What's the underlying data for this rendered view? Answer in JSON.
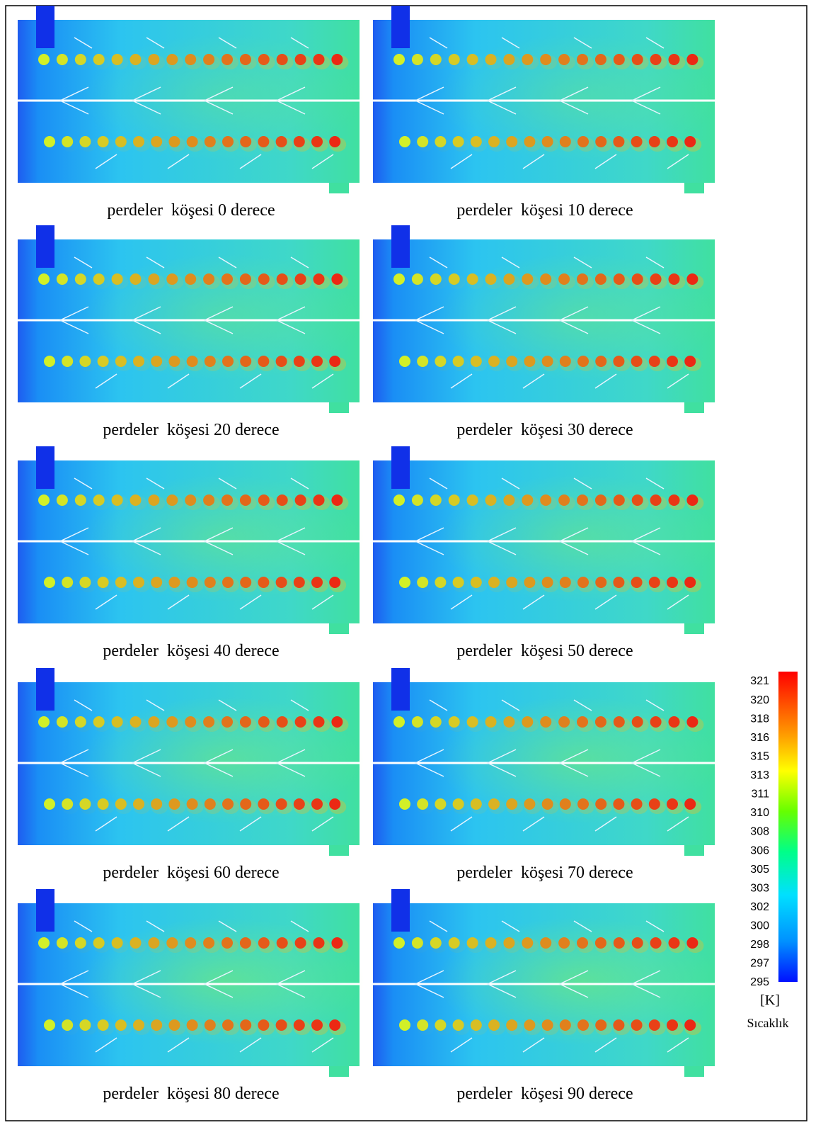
{
  "panels": [
    {
      "caption": "perdeler  köşesi 0 derece"
    },
    {
      "caption": "perdeler  köşesi 10 derece"
    },
    {
      "caption": "perdeler  köşesi 20 derece"
    },
    {
      "caption": "perdeler  köşesi 30 derece"
    },
    {
      "caption": "perdeler  köşesi 40 derece"
    },
    {
      "caption": "perdeler  köşesi 50 derece"
    },
    {
      "caption": "perdeler  köşesi 60 derece"
    },
    {
      "caption": "perdeler  köşesi 70 derece"
    },
    {
      "caption": "perdeler  köşesi 80 derece"
    },
    {
      "caption": "perdeler  köşesi 90 derece"
    }
  ],
  "colorbar": {
    "ticks": [
      "321",
      "320",
      "318",
      "316",
      "315",
      "313",
      "311",
      "310",
      "308",
      "306",
      "305",
      "303",
      "302",
      "300",
      "298",
      "297",
      "295"
    ],
    "unit": "[K]",
    "label": "Sıcaklık"
  }
}
